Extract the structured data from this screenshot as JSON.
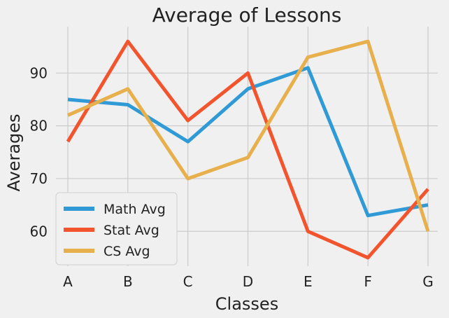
{
  "chart_data": {
    "type": "line",
    "title": "Average of Lessons",
    "xlabel": "Classes",
    "ylabel": "Averages",
    "categories": [
      "A",
      "B",
      "C",
      "D",
      "E",
      "F",
      "G"
    ],
    "ylim": [
      53.4,
      98.8
    ],
    "yticks": [
      60,
      70,
      80,
      90
    ],
    "grid": true,
    "legend_position": "lower-left",
    "series": [
      {
        "name": "Math Avg",
        "color": "#2f9ad6",
        "values": [
          85,
          84,
          77,
          87,
          91,
          63,
          65
        ]
      },
      {
        "name": "Stat Avg",
        "color": "#f2552e",
        "values": [
          77,
          96,
          81,
          90,
          60,
          55,
          68
        ]
      },
      {
        "name": "CS Avg",
        "color": "#e8b04d",
        "values": [
          82,
          87,
          70,
          74,
          93,
          96,
          60
        ]
      }
    ]
  }
}
